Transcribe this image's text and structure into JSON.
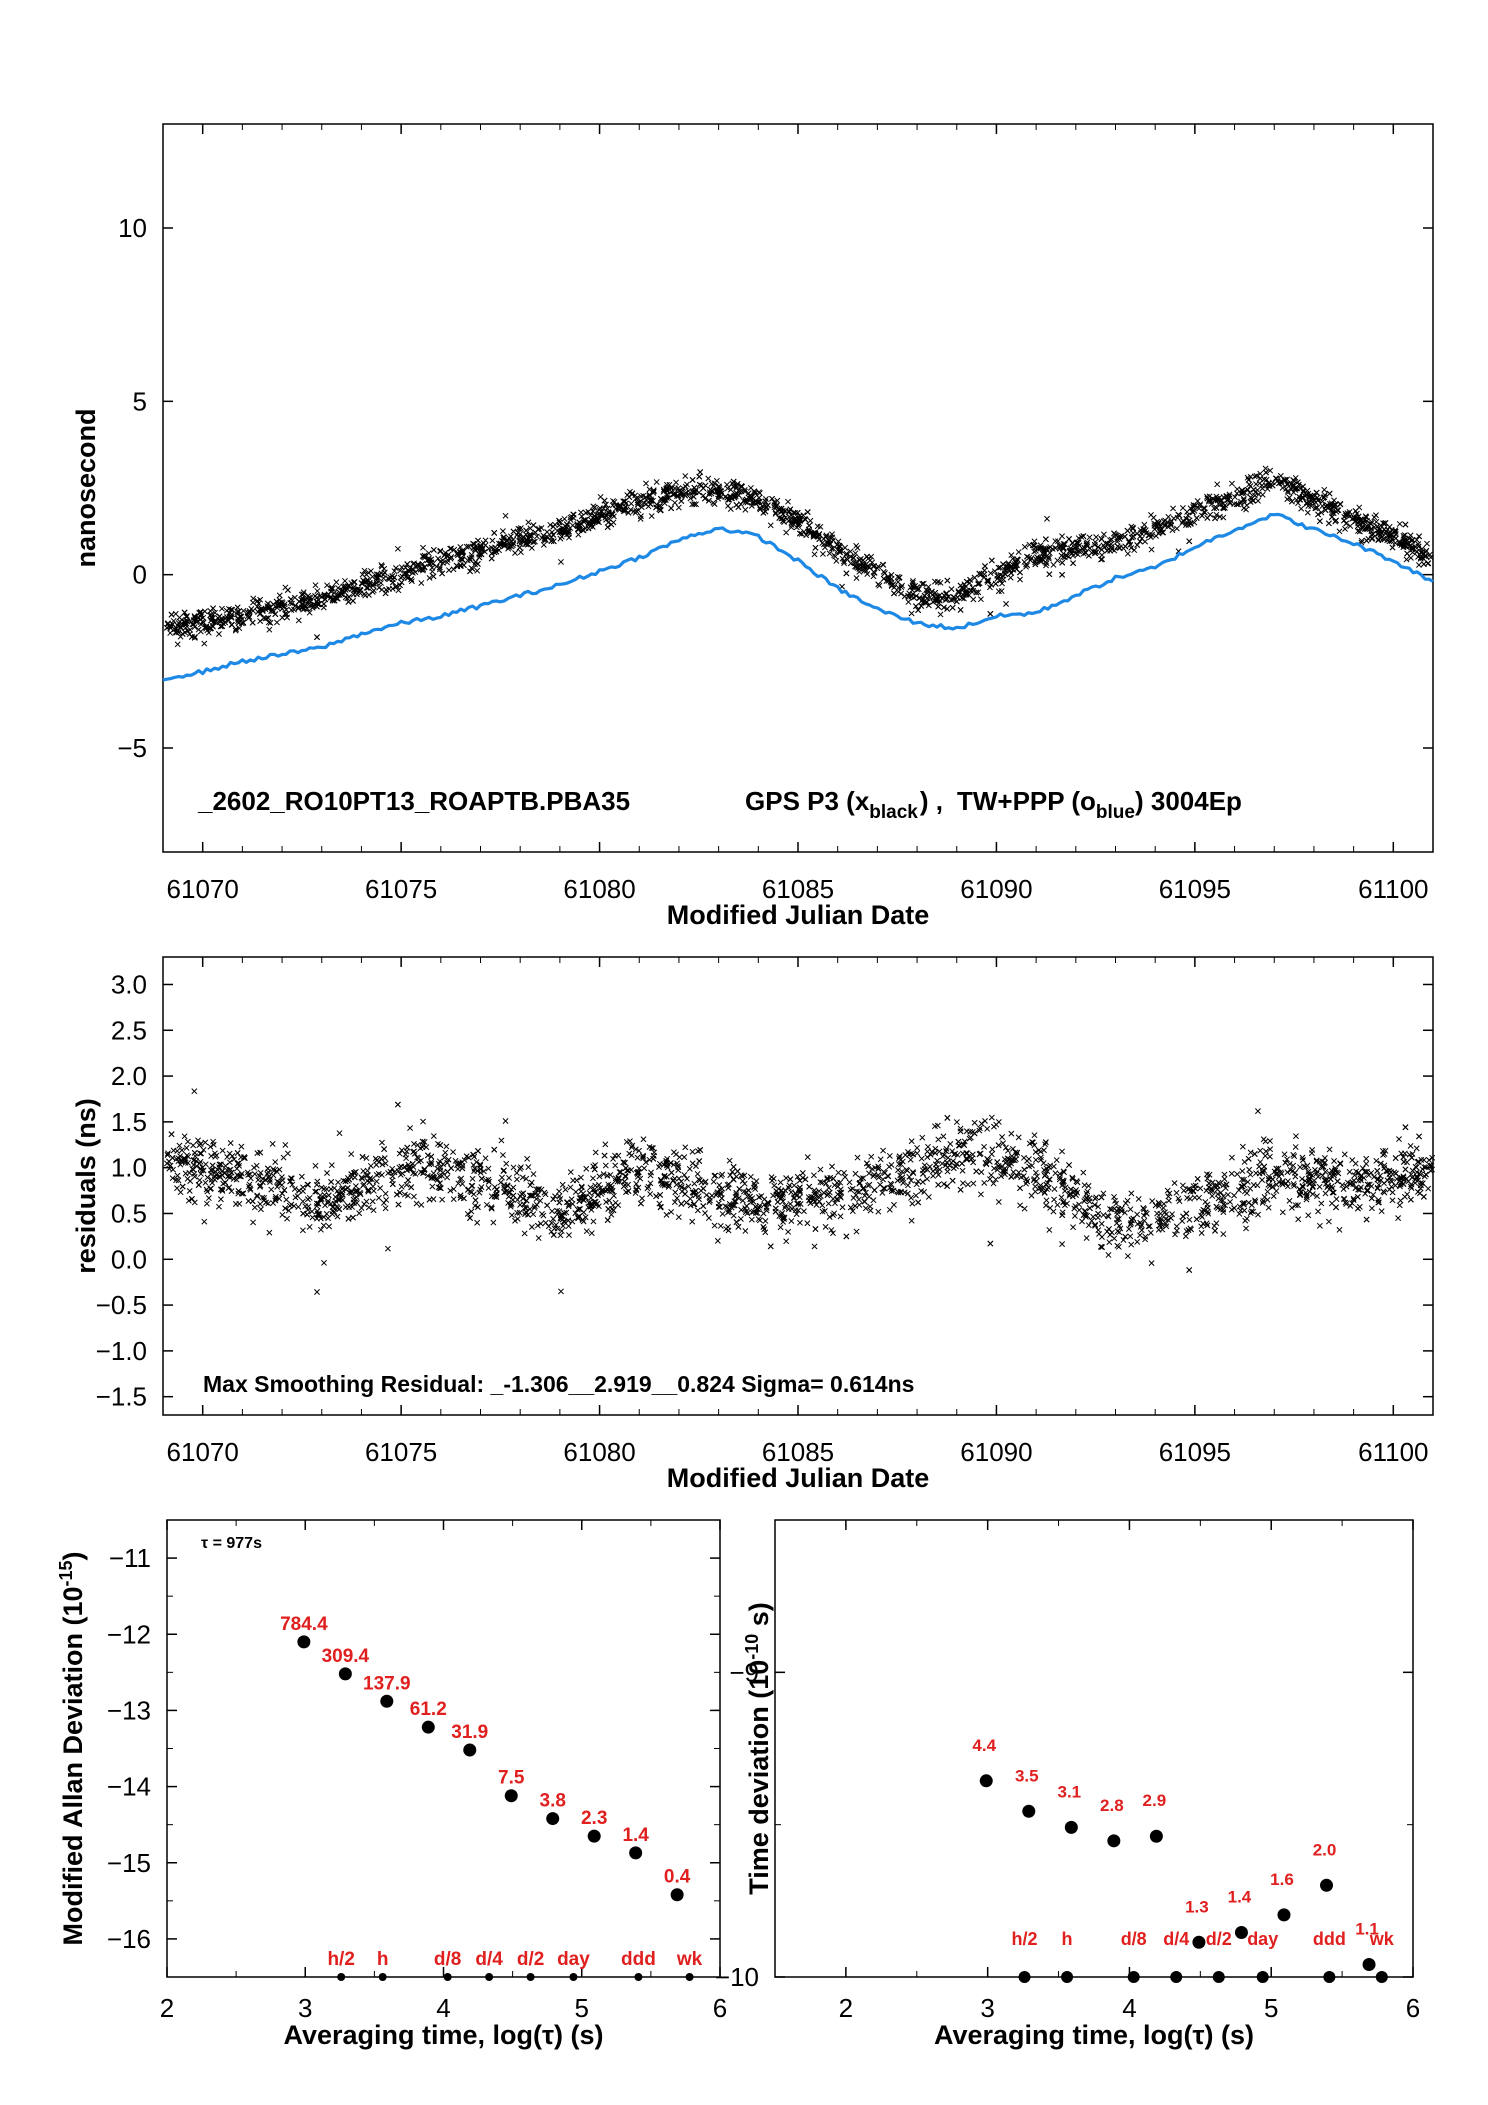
{
  "chart_data": [
    {
      "type": "scatter",
      "id": "time-series",
      "xlabel": "Modified Julian Date",
      "ylabel": "nanosecond",
      "xlim": [
        61069.0,
        61101.0
      ],
      "ylim": [
        -8,
        13
      ],
      "xticks": [
        61070,
        61075,
        61080,
        61085,
        61090,
        61095,
        61100
      ],
      "yticks": [
        -5,
        0,
        5,
        10
      ],
      "annotation": {
        "id": "_2602_RO10PT13_ROAPTB.PBA35",
        "gps_label": "GPS P3 (x",
        "gps_sub": "black",
        "sep": ") ,",
        "tw_label": "TW+PPP (o",
        "tw_sub": "blue",
        "tail": ")  3004Ep"
      },
      "series": [
        {
          "marker": "x",
          "color": "#000000",
          "trend_x": [
            61069,
            61071,
            61073,
            61075,
            61077,
            61079,
            61081,
            61082.5,
            61084,
            61086,
            61088,
            61089,
            61091,
            61093,
            61095,
            61097,
            61099,
            61101
          ],
          "trend_y": [
            -1.5,
            -1.2,
            -0.7,
            0.0,
            0.7,
            1.3,
            2.1,
            2.5,
            2.2,
            0.7,
            -0.6,
            -0.6,
            0.6,
            0.9,
            1.8,
            2.7,
            1.6,
            0.5
          ],
          "spread": 0.55,
          "n": 2600
        },
        {
          "marker": "line",
          "color": "#1e88e5",
          "x": [
            61069,
            61070,
            61071,
            61072,
            61073,
            61074,
            61075,
            61076,
            61077,
            61078,
            61079,
            61080,
            61081,
            61082,
            61083,
            61084,
            61085,
            61086,
            61087,
            61088,
            61089,
            61090,
            61091,
            61092,
            61093,
            61094,
            61095,
            61096,
            61097,
            61098,
            61099,
            61100,
            61101
          ],
          "y": [
            -3.0,
            -2.8,
            -2.5,
            -2.3,
            -2.1,
            -1.7,
            -1.4,
            -1.2,
            -0.9,
            -0.6,
            -0.3,
            0.1,
            0.5,
            1.0,
            1.35,
            1.1,
            0.4,
            -0.4,
            -1.0,
            -1.4,
            -1.55,
            -1.2,
            -1.1,
            -0.6,
            -0.1,
            0.2,
            0.8,
            1.3,
            1.75,
            1.3,
            0.9,
            0.4,
            -0.2
          ]
        }
      ]
    },
    {
      "type": "scatter",
      "id": "residuals",
      "xlabel": "Modified Julian Date",
      "ylabel": "residuals (ns)",
      "xlim": [
        61069.0,
        61101.0
      ],
      "ylim": [
        -1.7,
        3.3
      ],
      "xticks": [
        61070,
        61075,
        61080,
        61085,
        61090,
        61095,
        61100
      ],
      "yticks": [
        -1.5,
        -1.0,
        -0.5,
        0.0,
        0.5,
        1.0,
        1.5,
        2.0,
        2.5,
        3.0
      ],
      "ytick_labels": [
        "−1.5",
        "−1.0",
        "−0.5",
        "0.0",
        "0.5",
        "1.0",
        "1.5",
        "2.0",
        "2.5",
        "3.0"
      ],
      "annotation": "Max Smoothing Residual: _-1.306__2.919__0.824  Sigma= 0.614ns",
      "series": [
        {
          "marker": "x",
          "color": "#000000",
          "trend_x": [
            61069,
            61071,
            61073,
            61075,
            61077,
            61079,
            61081,
            61083,
            61085,
            61087,
            61089,
            61091,
            61093,
            61095,
            61097,
            61099,
            61101
          ],
          "trend_y": [
            1.1,
            0.9,
            0.6,
            1.0,
            0.9,
            0.5,
            1.0,
            0.7,
            0.6,
            0.8,
            1.2,
            1.0,
            0.4,
            0.6,
            0.9,
            0.8,
            1.0
          ],
          "spread": 0.5,
          "n": 2600
        }
      ]
    },
    {
      "type": "scatter",
      "id": "mdev",
      "xlabel": "Averaging time, log(τ) (s)",
      "ylabel": "Modified Allan Deviation (10",
      "ylabel_sup": "-15",
      "ylabel_tail": ")",
      "xlim": [
        2,
        6
      ],
      "ylim": [
        -16.5,
        -10.5
      ],
      "xticks": [
        2,
        3,
        4,
        5,
        6
      ],
      "yticks": [
        -16,
        -15,
        -14,
        -13,
        -12,
        -11
      ],
      "tau_note": "τ = 977s",
      "points": [
        {
          "x": 2.99,
          "y": -12.1,
          "label": "784.4"
        },
        {
          "x": 3.29,
          "y": -12.52,
          "label": "309.4"
        },
        {
          "x": 3.59,
          "y": -12.88,
          "label": "137.9"
        },
        {
          "x": 3.89,
          "y": -13.22,
          "label": "61.2"
        },
        {
          "x": 4.19,
          "y": -13.52,
          "label": "31.9"
        },
        {
          "x": 4.49,
          "y": -14.12,
          "label": "7.5"
        },
        {
          "x": 4.79,
          "y": -14.42,
          "label": "3.8"
        },
        {
          "x": 5.09,
          "y": -14.65,
          "label": "2.3"
        },
        {
          "x": 5.39,
          "y": -14.87,
          "label": "1.4"
        },
        {
          "x": 5.69,
          "y": -15.42,
          "label": "0.4"
        }
      ],
      "markers": [
        {
          "x": 3.26,
          "label": "h/2"
        },
        {
          "x": 3.56,
          "label": "h"
        },
        {
          "x": 4.03,
          "label": "d/8"
        },
        {
          "x": 4.33,
          "label": "d/4"
        },
        {
          "x": 4.63,
          "label": "d/2"
        },
        {
          "x": 4.94,
          "label": "day"
        },
        {
          "x": 5.41,
          "label": "ddd"
        },
        {
          "x": 5.78,
          "label": "wk"
        }
      ]
    },
    {
      "type": "scatter",
      "id": "tdev",
      "xlabel": "Averaging time, log(τ) (s)",
      "ylabel": "Time deviation (10",
      "ylabel_sup": "-10",
      "ylabel_tail": " s)",
      "xlim": [
        1.5,
        6
      ],
      "ylim": [
        -10,
        -8.5
      ],
      "xticks": [
        2,
        3,
        4,
        5,
        6
      ],
      "yticks": [
        -10,
        -9
      ],
      "ytick_labels": [
        "−10",
        "−9"
      ],
      "points": [
        {
          "x": 2.99,
          "y": -9.356,
          "label": "4.4"
        },
        {
          "x": 3.29,
          "y": -9.456,
          "label": "3.5"
        },
        {
          "x": 3.59,
          "y": -9.509,
          "label": "3.1"
        },
        {
          "x": 3.89,
          "y": -9.553,
          "label": "2.8"
        },
        {
          "x": 4.19,
          "y": -9.538,
          "label": "2.9"
        },
        {
          "x": 4.49,
          "y": -9.886,
          "label": "1.3"
        },
        {
          "x": 4.79,
          "y": -9.854,
          "label": "1.4"
        },
        {
          "x": 5.09,
          "y": -9.796,
          "label": "1.6"
        },
        {
          "x": 5.39,
          "y": -9.699,
          "label": "2.0"
        },
        {
          "x": 5.69,
          "y": -9.959,
          "label": "1.1"
        }
      ],
      "markers": [
        {
          "x": 3.26,
          "label": "h/2"
        },
        {
          "x": 3.56,
          "label": "h"
        },
        {
          "x": 4.03,
          "label": "d/8"
        },
        {
          "x": 4.33,
          "label": "d/4"
        },
        {
          "x": 4.63,
          "label": "d/2"
        },
        {
          "x": 4.94,
          "label": "day"
        },
        {
          "x": 5.41,
          "label": "ddd"
        },
        {
          "x": 5.78,
          "label": "wk"
        }
      ]
    }
  ]
}
